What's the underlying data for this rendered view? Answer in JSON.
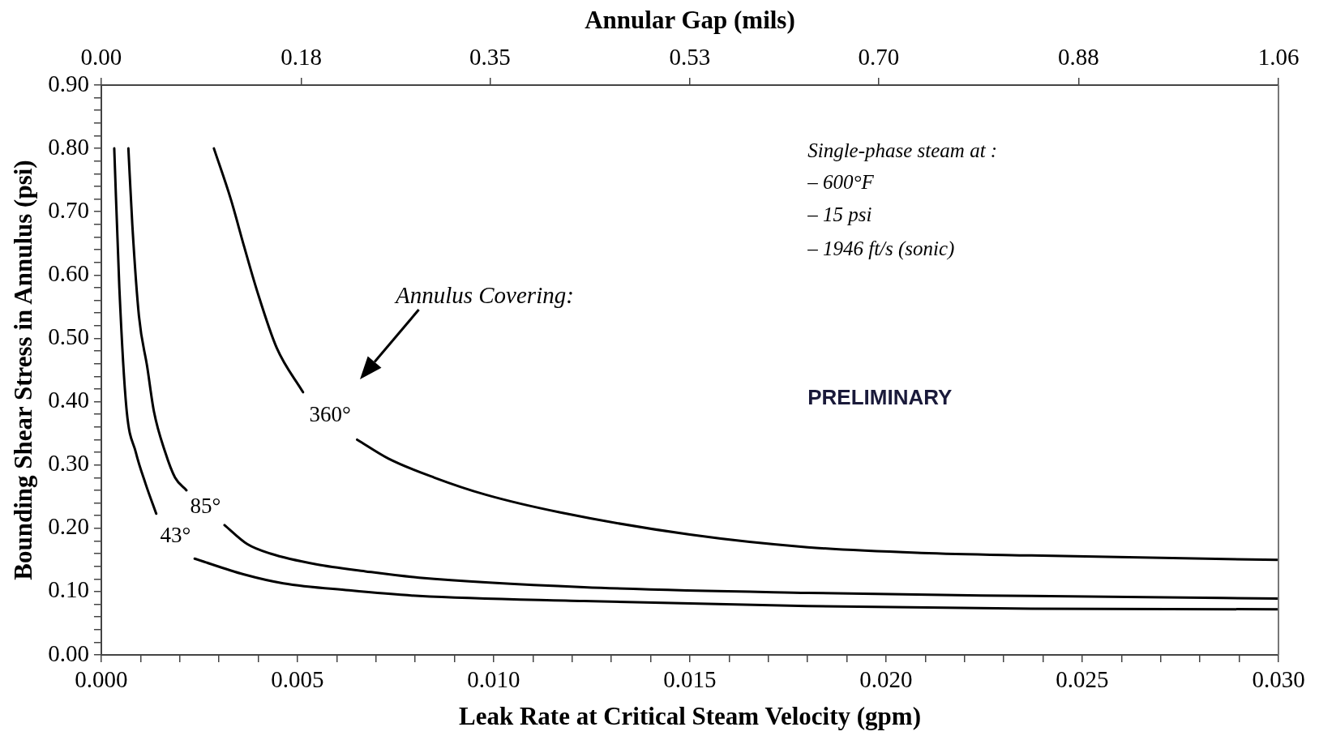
{
  "chart_data": {
    "type": "line",
    "xlabel": "Leak Rate at Critical Steam Velocity (gpm)",
    "ylabel": "Bounding Shear Stress in Annulus (psi)",
    "x2label": "Annular Gap (mils)",
    "xlim": [
      0,
      0.03
    ],
    "ylim": [
      0,
      0.9
    ],
    "x2lim": [
      0,
      1.06
    ],
    "xticks": [
      {
        "value": 0,
        "label": "0.000"
      },
      {
        "value": 0.001,
        "label": null
      },
      {
        "value": 0.002,
        "label": null
      },
      {
        "value": 0.003,
        "label": null
      },
      {
        "value": 0.004,
        "label": null
      },
      {
        "value": 0.005,
        "label": "0.005"
      },
      {
        "value": 0.006,
        "label": null
      },
      {
        "value": 0.007,
        "label": null
      },
      {
        "value": 0.008,
        "label": null
      },
      {
        "value": 0.009,
        "label": null
      },
      {
        "value": 0.01,
        "label": "0.010"
      },
      {
        "value": 0.011,
        "label": null
      },
      {
        "value": 0.012,
        "label": null
      },
      {
        "value": 0.013,
        "label": null
      },
      {
        "value": 0.014,
        "label": null
      },
      {
        "value": 0.015,
        "label": "0.015"
      },
      {
        "value": 0.016,
        "label": null
      },
      {
        "value": 0.017,
        "label": null
      },
      {
        "value": 0.018,
        "label": null
      },
      {
        "value": 0.019,
        "label": null
      },
      {
        "value": 0.02,
        "label": "0.020"
      },
      {
        "value": 0.021,
        "label": null
      },
      {
        "value": 0.022,
        "label": null
      },
      {
        "value": 0.023,
        "label": null
      },
      {
        "value": 0.024,
        "label": null
      },
      {
        "value": 0.025,
        "label": "0.025"
      },
      {
        "value": 0.026,
        "label": null
      },
      {
        "value": 0.027,
        "label": null
      },
      {
        "value": 0.028,
        "label": null
      },
      {
        "value": 0.029,
        "label": null
      },
      {
        "value": 0.03,
        "label": "0.030"
      }
    ],
    "x2ticks": [
      {
        "value": 0,
        "label": "0.00"
      },
      {
        "value": 0.18,
        "label": "0.18"
      },
      {
        "value": 0.35,
        "label": "0.35"
      },
      {
        "value": 0.53,
        "label": "0.53"
      },
      {
        "value": 0.7,
        "label": "0.70"
      },
      {
        "value": 0.88,
        "label": "0.88"
      },
      {
        "value": 1.06,
        "label": "1.06"
      }
    ],
    "yticks": [
      {
        "value": 0,
        "label": "0.00"
      },
      {
        "value": 0.02,
        "label": null
      },
      {
        "value": 0.04,
        "label": null
      },
      {
        "value": 0.06,
        "label": null
      },
      {
        "value": 0.08,
        "label": null
      },
      {
        "value": 0.1,
        "label": "0.10"
      },
      {
        "value": 0.12,
        "label": null
      },
      {
        "value": 0.14,
        "label": null
      },
      {
        "value": 0.16,
        "label": null
      },
      {
        "value": 0.18,
        "label": null
      },
      {
        "value": 0.2,
        "label": "0.20"
      },
      {
        "value": 0.22,
        "label": null
      },
      {
        "value": 0.24,
        "label": null
      },
      {
        "value": 0.26,
        "label": null
      },
      {
        "value": 0.28,
        "label": null
      },
      {
        "value": 0.3,
        "label": "0.30"
      },
      {
        "value": 0.32,
        "label": null
      },
      {
        "value": 0.34,
        "label": null
      },
      {
        "value": 0.36,
        "label": null
      },
      {
        "value": 0.38,
        "label": null
      },
      {
        "value": 0.4,
        "label": "0.40"
      },
      {
        "value": 0.42,
        "label": null
      },
      {
        "value": 0.44,
        "label": null
      },
      {
        "value": 0.46,
        "label": null
      },
      {
        "value": 0.48,
        "label": null
      },
      {
        "value": 0.5,
        "label": "0.50"
      },
      {
        "value": 0.52,
        "label": null
      },
      {
        "value": 0.54,
        "label": null
      },
      {
        "value": 0.56,
        "label": null
      },
      {
        "value": 0.58,
        "label": null
      },
      {
        "value": 0.6,
        "label": "0.60"
      },
      {
        "value": 0.62,
        "label": null
      },
      {
        "value": 0.64,
        "label": null
      },
      {
        "value": 0.66,
        "label": null
      },
      {
        "value": 0.68,
        "label": null
      },
      {
        "value": 0.7,
        "label": "0.70"
      },
      {
        "value": 0.72,
        "label": null
      },
      {
        "value": 0.74,
        "label": null
      },
      {
        "value": 0.76,
        "label": null
      },
      {
        "value": 0.78,
        "label": null
      },
      {
        "value": 0.8,
        "label": "0.80"
      },
      {
        "value": 0.82,
        "label": null
      },
      {
        "value": 0.84,
        "label": null
      },
      {
        "value": 0.86,
        "label": null
      },
      {
        "value": 0.88,
        "label": null
      },
      {
        "value": 0.9,
        "label": "0.90"
      }
    ],
    "series": [
      {
        "name": "360°",
        "color": "#000000",
        "x": [
          0.00287,
          0.0033,
          0.00364,
          0.00397,
          0.00447,
          0.00514,
          0.0058,
          0.00652,
          0.00732,
          0.00849,
          0.0098,
          0.0117,
          0.015,
          0.018,
          0.0209,
          0.0237,
          0.03
        ],
        "values": [
          0.8,
          0.72,
          0.645,
          0.575,
          0.485,
          0.415,
          null,
          0.34,
          0.31,
          0.28,
          0.253,
          0.225,
          0.19,
          0.17,
          0.161,
          0.157,
          0.15
        ]
      },
      {
        "name": "85°",
        "color": "#000000",
        "x": [
          0.00069,
          0.00079,
          0.00096,
          0.00117,
          0.00134,
          0.00163,
          0.00188,
          0.00217,
          0.0026,
          0.00314,
          0.00372,
          0.00431,
          0.00548,
          0.00673,
          0.0081,
          0.0123,
          0.018,
          0.0237,
          0.03
        ],
        "values": [
          0.8,
          0.68,
          0.535,
          0.455,
          0.385,
          0.32,
          0.28,
          0.26,
          null,
          0.205,
          0.175,
          0.16,
          0.143,
          0.132,
          0.122,
          0.107,
          0.098,
          0.093,
          0.089
        ]
      },
      {
        "name": "43°",
        "color": "#000000",
        "x": [
          0.00033,
          0.00046,
          0.00064,
          0.00088,
          0.00113,
          0.0014,
          0.0019,
          0.00238,
          0.00364,
          0.00464,
          0.00631,
          0.0081,
          0.0123,
          0.018,
          0.0237,
          0.03
        ],
        "values": [
          0.8,
          0.58,
          0.39,
          0.32,
          0.27,
          0.223,
          null,
          0.152,
          0.127,
          0.113,
          0.102,
          0.093,
          0.085,
          0.077,
          0.073,
          0.072
        ]
      }
    ],
    "annotations": [
      "Single-phase steam at :",
      "– 600°F",
      "– 15 psi",
      "– 1946 ft/s (sonic)",
      "Annulus Covering:",
      "PRELIMINARY"
    ],
    "grid": false,
    "marker": "none",
    "line_style": "solid"
  }
}
